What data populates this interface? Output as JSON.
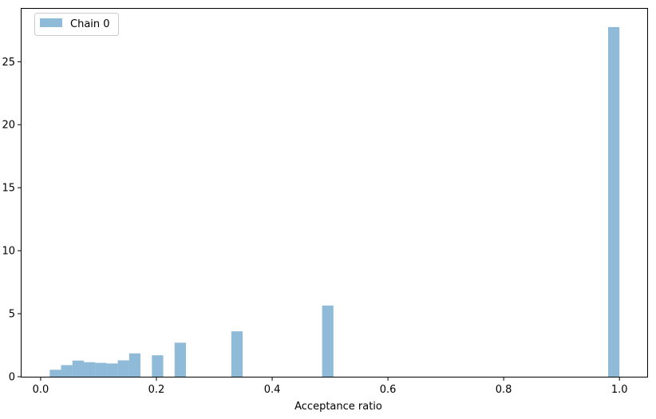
{
  "chart_data": {
    "type": "bar",
    "xlabel": "Acceptance ratio",
    "ylabel": "",
    "title": "",
    "xlim": [
      -0.033,
      1.048
    ],
    "ylim": [
      0,
      29.2
    ],
    "xticks": [
      0.0,
      0.2,
      0.4,
      0.6,
      0.8,
      1.0
    ],
    "xtick_labels": [
      "0.0",
      "0.2",
      "0.4",
      "0.6",
      "0.8",
      "1.0"
    ],
    "yticks": [
      0,
      5,
      10,
      15,
      20,
      25
    ],
    "ytick_labels": [
      "0",
      "5",
      "10",
      "15",
      "20",
      "25"
    ],
    "grid": false,
    "legend_position": "top-left",
    "bar_color": "#1f77b4",
    "bar_alpha": 0.5,
    "series": [
      {
        "name": "Chain 0",
        "bins": [
          {
            "x0": 0.0157,
            "x1": 0.0353,
            "value": 0.55
          },
          {
            "x0": 0.0353,
            "x1": 0.0549,
            "value": 0.92
          },
          {
            "x0": 0.0549,
            "x1": 0.0745,
            "value": 1.28
          },
          {
            "x0": 0.0745,
            "x1": 0.0941,
            "value": 1.15
          },
          {
            "x0": 0.0941,
            "x1": 0.1137,
            "value": 1.1
          },
          {
            "x0": 0.1137,
            "x1": 0.1333,
            "value": 1.05
          },
          {
            "x0": 0.1333,
            "x1": 0.1529,
            "value": 1.3
          },
          {
            "x0": 0.1529,
            "x1": 0.1725,
            "value": 1.85
          },
          {
            "x0": 0.1922,
            "x1": 0.2118,
            "value": 1.7
          },
          {
            "x0": 0.2314,
            "x1": 0.251,
            "value": 2.7
          },
          {
            "x0": 0.3294,
            "x1": 0.349,
            "value": 3.6
          },
          {
            "x0": 0.4863,
            "x1": 0.5059,
            "value": 5.65
          },
          {
            "x0": 0.9804,
            "x1": 1.0,
            "value": 27.75
          }
        ]
      }
    ]
  }
}
